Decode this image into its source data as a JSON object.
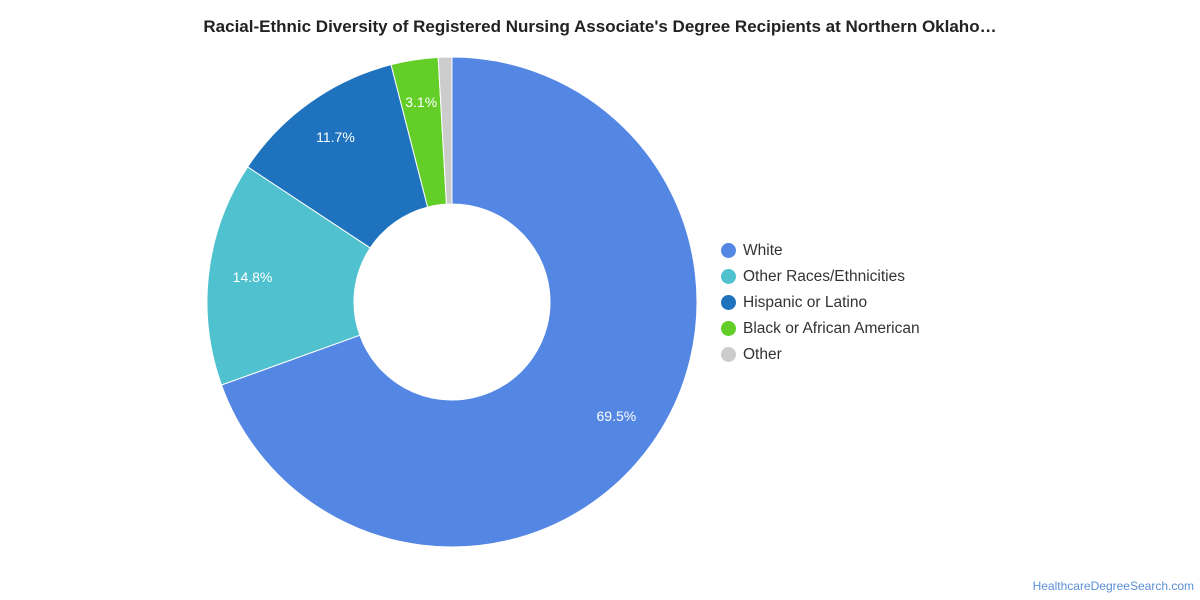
{
  "title": "Racial-Ethnic Diversity of Registered Nursing Associate's Degree Recipients at Northern Oklaho…",
  "source": "HealthcareDegreeSearch.com",
  "chart_data": {
    "type": "pie",
    "donut": true,
    "title": "Racial-Ethnic Diversity of Registered Nursing Associate's Degree Recipients at Northern Oklaho…",
    "categories": [
      "White",
      "Other Races/Ethnicities",
      "Hispanic or Latino",
      "Black or African American",
      "Other"
    ],
    "values": [
      69.5,
      14.8,
      11.7,
      3.1,
      0.9
    ],
    "labels": [
      "69.5%",
      "14.8%",
      "11.7%",
      "3.1%",
      ""
    ],
    "colors": [
      "#5486e3",
      "#50c2cf",
      "#1f72bd",
      "#62ce27",
      "#cccccc"
    ],
    "legend_position": "right"
  }
}
